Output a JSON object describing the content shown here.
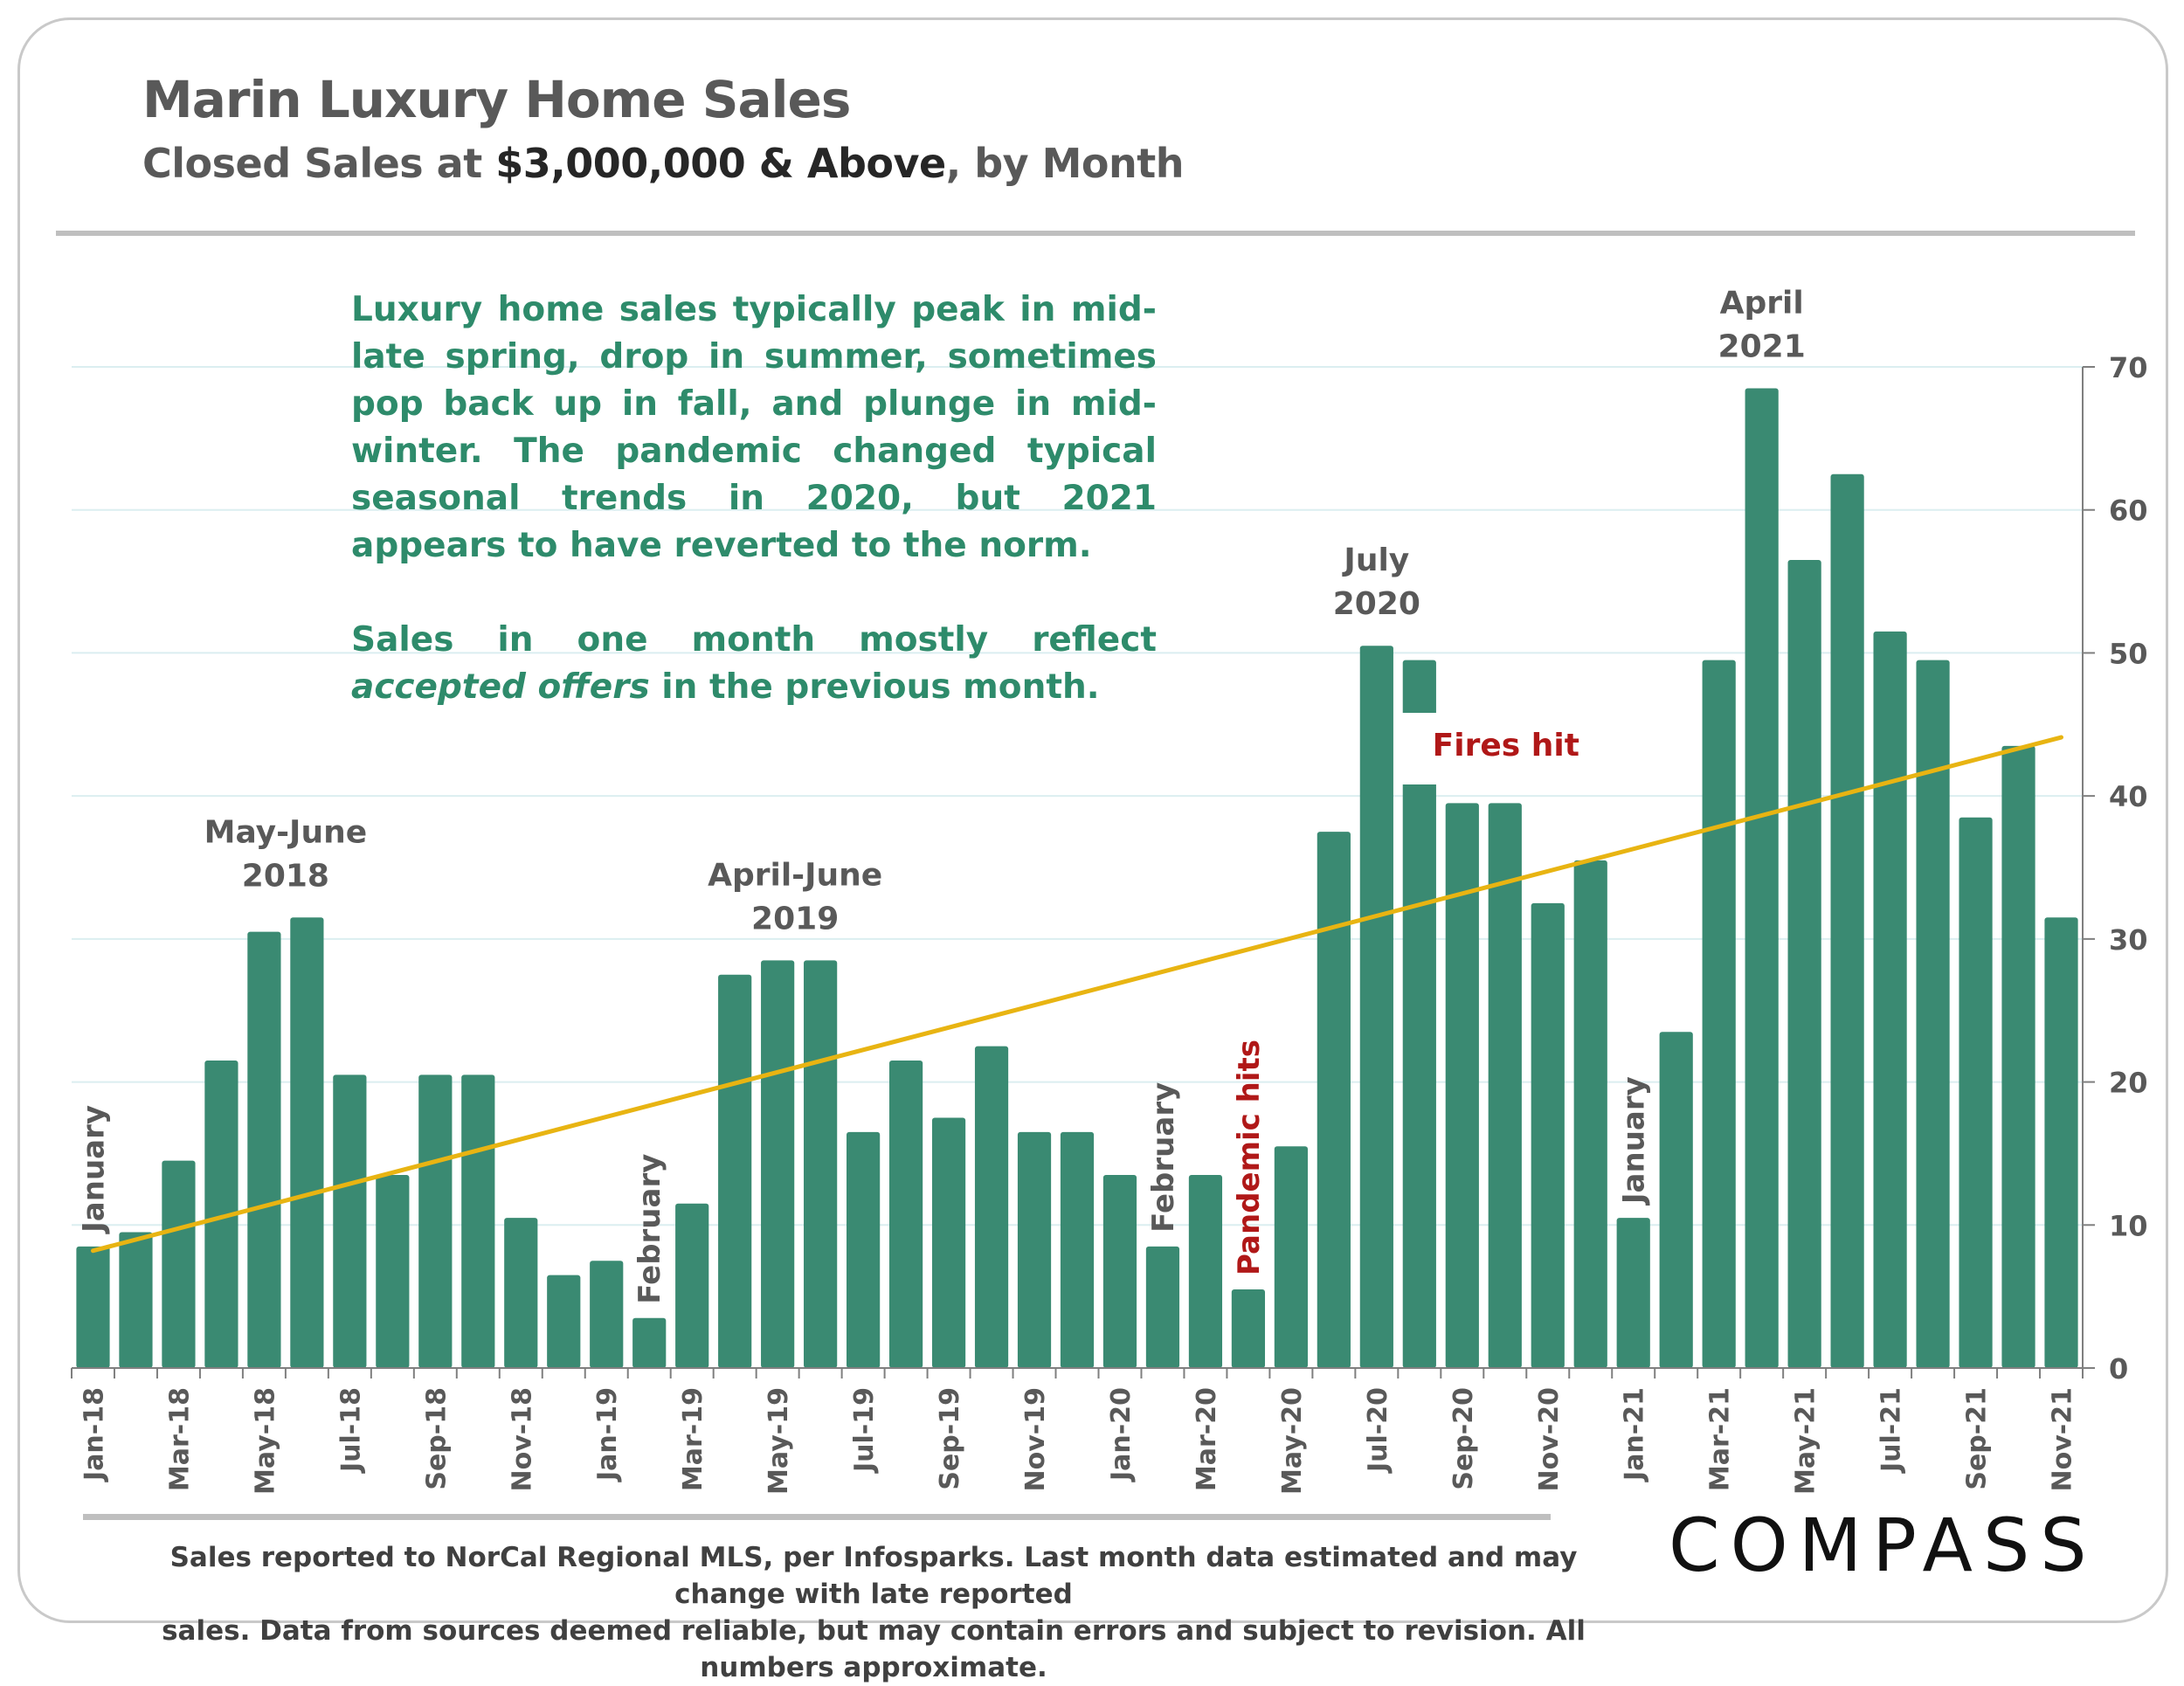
{
  "header": {
    "title": "Marin Luxury Home Sales",
    "subtitle_prefix": "Closed Sales at ",
    "subtitle_strong": "$3,000,000 & Above",
    "subtitle_suffix": ", by Month"
  },
  "note": {
    "p1": "Luxury home sales typically peak in mid-late spring, drop in summer, sometimes pop back up in fall, and plunge in mid-winter. The pandemic changed typical seasonal trends in 2020, but 2021 appears to have  reverted to the norm.",
    "p2_start": "Sales in one month mostly reflect ",
    "p2_em1": "accepted",
    "p2_space": " ",
    "p2_em2": "offers",
    "p2_end": " in the previous month."
  },
  "footer": {
    "line1": "Sales reported to NorCal Regional MLS, per Infosparks. Last month data estimated and may change with late reported",
    "line2": "sales. Data from sources deemed reliable, but may contain errors and subject to revision. All numbers approximate."
  },
  "brand": {
    "logo_text": "COMPASS"
  },
  "colors": {
    "bar": "#3a8a72",
    "trend": "#e8b412",
    "note_text": "#2e8b6b",
    "annotation_text": "#595959",
    "event_text": "#b01818",
    "grid": "#dbeef0"
  },
  "chart_data": {
    "type": "bar",
    "categories": [
      "Jan-18",
      "Feb-18",
      "Mar-18",
      "Apr-18",
      "May-18",
      "Jun-18",
      "Jul-18",
      "Aug-18",
      "Sep-18",
      "Oct-18",
      "Nov-18",
      "Dec-18",
      "Jan-19",
      "Feb-19",
      "Mar-19",
      "Apr-19",
      "May-19",
      "Jun-19",
      "Jul-19",
      "Aug-19",
      "Sep-19",
      "Oct-19",
      "Nov-19",
      "Dec-19",
      "Jan-20",
      "Feb-20",
      "Mar-20",
      "Apr-20",
      "May-20",
      "Jun-20",
      "Jul-20",
      "Aug-20",
      "Sep-20",
      "Oct-20",
      "Nov-20",
      "Dec-20",
      "Jan-21",
      "Feb-21",
      "Mar-21",
      "Apr-21",
      "May-21",
      "Jun-21",
      "Jul-21",
      "Aug-21",
      "Sep-21",
      "Oct-21",
      "Nov-21"
    ],
    "tick_labels": [
      "Jan-18",
      "Mar-18",
      "May-18",
      "Jul-18",
      "Sep-18",
      "Nov-18",
      "Jan-19",
      "Mar-19",
      "May-19",
      "Jul-19",
      "Sep-19",
      "Nov-19",
      "Jan-20",
      "Mar-20",
      "May-20",
      "Jul-20",
      "Sep-20",
      "Nov-20",
      "Jan-21",
      "Mar-21",
      "May-21",
      "Jul-21",
      "Sep-21",
      "Nov-21"
    ],
    "values": [
      8.5,
      9.5,
      14.5,
      21.5,
      30.5,
      31.5,
      20.5,
      13.5,
      20.5,
      20.5,
      10.5,
      6.5,
      7.5,
      3.5,
      11.5,
      27.5,
      28.5,
      28.5,
      16.5,
      21.5,
      17.5,
      22.5,
      16.5,
      16.5,
      13.5,
      8.5,
      13.5,
      5.5,
      15.5,
      37.5,
      50.5,
      49.5,
      39.5,
      39.5,
      32.5,
      35.5,
      10.5,
      23.5,
      49.5,
      68.5,
      56.5,
      62.5,
      51.5,
      49.5,
      38.5,
      43.5,
      31.5
    ],
    "trendline": {
      "start": 8.2,
      "end": 44.1
    },
    "y_axis": {
      "position": "right",
      "ylim": [
        0,
        70
      ],
      "ticks": [
        0,
        10,
        20,
        30,
        40,
        50,
        60,
        70
      ]
    },
    "xlabel": "",
    "ylabel": "",
    "grid": true,
    "annotations": [
      {
        "name": "may-june-2018",
        "lines": [
          "May-June",
          "2018"
        ],
        "index": 5
      },
      {
        "name": "april-june-2019",
        "lines": [
          "April-June",
          "2019"
        ],
        "index": 16
      },
      {
        "name": "july-2020",
        "lines": [
          "July",
          "2020"
        ],
        "index": 30
      },
      {
        "name": "april-2021",
        "lines": [
          "April",
          "2021"
        ],
        "index": 39
      }
    ],
    "vertical_labels": [
      {
        "name": "january-2018",
        "text": "January",
        "index": 0,
        "type": "month"
      },
      {
        "name": "february-2019",
        "text": "February",
        "index": 13,
        "type": "month"
      },
      {
        "name": "february-2020",
        "text": "February",
        "index": 25,
        "type": "month"
      },
      {
        "name": "pandemic-hits",
        "text": "Pandemic hits",
        "index": 27,
        "type": "event"
      },
      {
        "name": "january-2021",
        "text": "January",
        "index": 36,
        "type": "month"
      }
    ],
    "events": [
      {
        "name": "fires-hit",
        "text": "Fires hit",
        "index": 32
      }
    ]
  }
}
